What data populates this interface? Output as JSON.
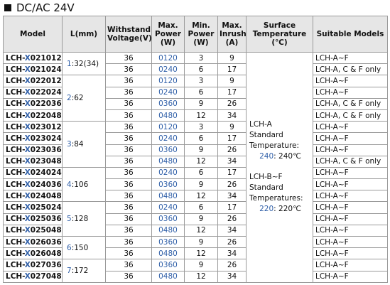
{
  "header": {
    "title": "DC/AC 24V"
  },
  "table": {
    "columns": [
      "Model",
      "L(mm)",
      "Withstand Voltage(V)",
      "Max. Power (W)",
      "Min. Power (W)",
      "Max. Inrush (A)",
      "Surface Temperature (℃)",
      "Suitable Models"
    ],
    "surface_temperature": [
      {
        "model": "LCH-A",
        "lines": [
          "Standard",
          "Temperature:"
        ],
        "code": "240",
        "separator": ":",
        "value": "240℃"
      },
      {
        "model": "LCH-B~F",
        "lines": [
          "Standard",
          "Temperatures:"
        ],
        "code": "220",
        "separator": ":",
        "value": "220℃"
      }
    ],
    "groups": [
      {
        "number": "1",
        "separator": ":",
        "length": "32(34)",
        "rows": [
          {
            "model": {
              "prefix": "LCH-",
              "variant": "X",
              "code": "021012"
            },
            "voltage": "36",
            "max_power": "0120",
            "min_power": "3",
            "max_inrush": "9",
            "suitable": "LCH-A~F"
          },
          {
            "model": {
              "prefix": "LCH-",
              "variant": "X",
              "code": "021024"
            },
            "voltage": "36",
            "max_power": "0240",
            "min_power": "6",
            "max_inrush": "17",
            "suitable": "LCH-A, C & F only"
          }
        ]
      },
      {
        "number": "2",
        "separator": ":",
        "length": "62",
        "rows": [
          {
            "model": {
              "prefix": "LCH-",
              "variant": "X",
              "code": "022012"
            },
            "voltage": "36",
            "max_power": "0120",
            "min_power": "3",
            "max_inrush": "9",
            "suitable": "LCH-A~F"
          },
          {
            "model": {
              "prefix": "LCH-",
              "variant": "X",
              "code": "022024"
            },
            "voltage": "36",
            "max_power": "0240",
            "min_power": "6",
            "max_inrush": "17",
            "suitable": "LCH-A~F"
          },
          {
            "model": {
              "prefix": "LCH-",
              "variant": "X",
              "code": "022036"
            },
            "voltage": "36",
            "max_power": "0360",
            "min_power": "9",
            "max_inrush": "26",
            "suitable": "LCH-A, C & F only"
          },
          {
            "model": {
              "prefix": "LCH-",
              "variant": "X",
              "code": "022048"
            },
            "voltage": "36",
            "max_power": "0480",
            "min_power": "12",
            "max_inrush": "34",
            "suitable": "LCH-A, C & F only"
          }
        ]
      },
      {
        "number": "3",
        "separator": ":",
        "length": "84",
        "rows": [
          {
            "model": {
              "prefix": "LCH-",
              "variant": "X",
              "code": "023012"
            },
            "voltage": "36",
            "max_power": "0120",
            "min_power": "3",
            "max_inrush": "9",
            "suitable": "LCH-A~F"
          },
          {
            "model": {
              "prefix": "LCH-",
              "variant": "X",
              "code": "023024"
            },
            "voltage": "36",
            "max_power": "0240",
            "min_power": "6",
            "max_inrush": "17",
            "suitable": "LCH-A~F"
          },
          {
            "model": {
              "prefix": "LCH-",
              "variant": "X",
              "code": "023036"
            },
            "voltage": "36",
            "max_power": "0360",
            "min_power": "9",
            "max_inrush": "26",
            "suitable": "LCH-A~F"
          },
          {
            "model": {
              "prefix": "LCH-",
              "variant": "X",
              "code": "023048"
            },
            "voltage": "36",
            "max_power": "0480",
            "min_power": "12",
            "max_inrush": "34",
            "suitable": "LCH-A, C & F only"
          }
        ]
      },
      {
        "number": "4",
        "separator": ":",
        "length": "106",
        "rows": [
          {
            "model": {
              "prefix": "LCH-",
              "variant": "X",
              "code": "024024"
            },
            "voltage": "36",
            "max_power": "0240",
            "min_power": "6",
            "max_inrush": "17",
            "suitable": "LCH-A~F"
          },
          {
            "model": {
              "prefix": "LCH-",
              "variant": "X",
              "code": "024036"
            },
            "voltage": "36",
            "max_power": "0360",
            "min_power": "9",
            "max_inrush": "26",
            "suitable": "LCH-A~F"
          },
          {
            "model": {
              "prefix": "LCH-",
              "variant": "X",
              "code": "024048"
            },
            "voltage": "36",
            "max_power": "0480",
            "min_power": "12",
            "max_inrush": "34",
            "suitable": "LCH-A~F"
          }
        ]
      },
      {
        "number": "5",
        "separator": ":",
        "length": "128",
        "rows": [
          {
            "model": {
              "prefix": "LCH-",
              "variant": "X",
              "code": "025024"
            },
            "voltage": "36",
            "max_power": "0240",
            "min_power": "6",
            "max_inrush": "17",
            "suitable": "LCH-A~F"
          },
          {
            "model": {
              "prefix": "LCH-",
              "variant": "X",
              "code": "025036"
            },
            "voltage": "36",
            "max_power": "0360",
            "min_power": "9",
            "max_inrush": "26",
            "suitable": "LCH-A~F"
          },
          {
            "model": {
              "prefix": "LCH-",
              "variant": "X",
              "code": "025048"
            },
            "voltage": "36",
            "max_power": "0480",
            "min_power": "12",
            "max_inrush": "34",
            "suitable": "LCH-A~F"
          }
        ]
      },
      {
        "number": "6",
        "separator": ":",
        "length": "150",
        "rows": [
          {
            "model": {
              "prefix": "LCH-",
              "variant": "X",
              "code": "026036"
            },
            "voltage": "36",
            "max_power": "0360",
            "min_power": "9",
            "max_inrush": "26",
            "suitable": "LCH-A~F"
          },
          {
            "model": {
              "prefix": "LCH-",
              "variant": "X",
              "code": "026048"
            },
            "voltage": "36",
            "max_power": "0480",
            "min_power": "12",
            "max_inrush": "34",
            "suitable": "LCH-A~F"
          }
        ]
      },
      {
        "number": "7",
        "separator": ":",
        "length": "172",
        "rows": [
          {
            "model": {
              "prefix": "LCH-",
              "variant": "X",
              "code": "027036"
            },
            "voltage": "36",
            "max_power": "0360",
            "min_power": "9",
            "max_inrush": "26",
            "suitable": "LCH-A~F"
          },
          {
            "model": {
              "prefix": "LCH-",
              "variant": "X",
              "code": "027048"
            },
            "voltage": "36",
            "max_power": "0480",
            "min_power": "12",
            "max_inrush": "34",
            "suitable": "LCH-A~F"
          }
        ]
      }
    ]
  }
}
